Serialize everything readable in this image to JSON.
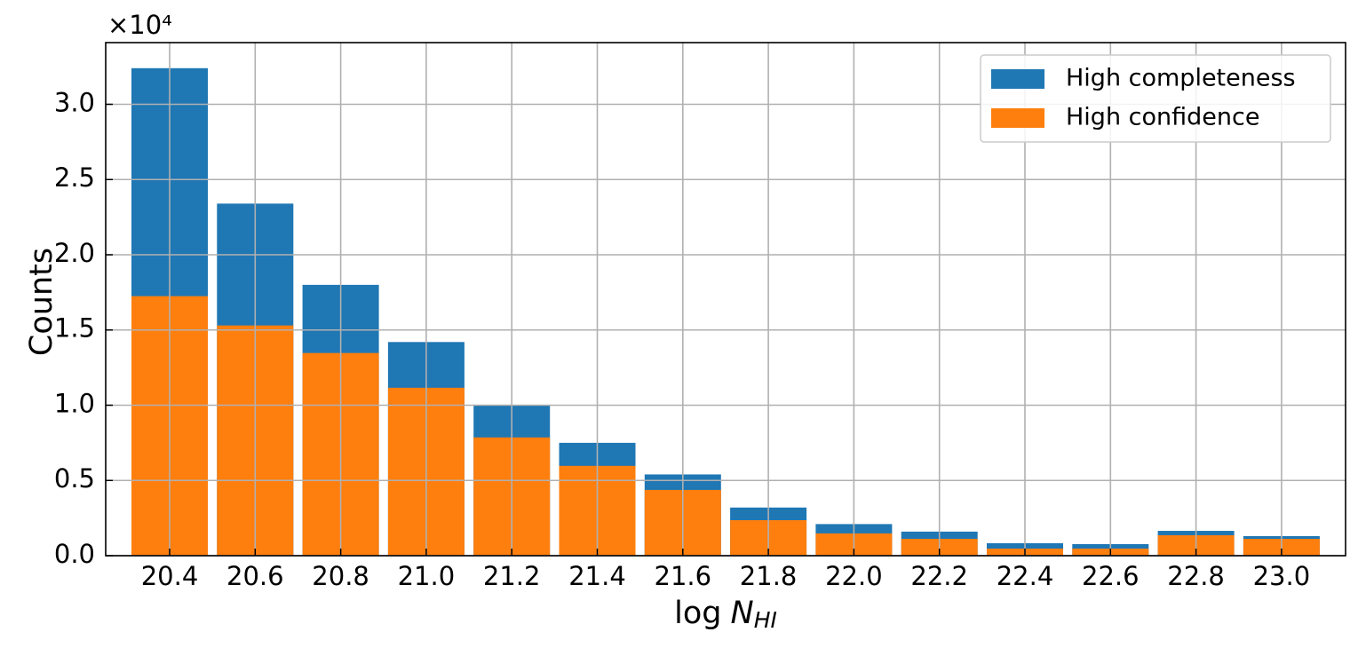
{
  "chart_data": {
    "type": "bar",
    "barmode": "overlay",
    "y_label": "Counts",
    "y_multiplier": "×10⁴",
    "x_label_parts": [
      "log",
      "N",
      "HI"
    ],
    "categories": [
      "20.4",
      "20.6",
      "20.8",
      "21.0",
      "21.2",
      "21.4",
      "21.6",
      "21.8",
      "22.0",
      "22.2",
      "22.4",
      "22.6",
      "22.8",
      "23.0"
    ],
    "series": [
      {
        "name": "High completeness",
        "color": "#1f77b4",
        "values": [
          3.24,
          2.34,
          1.8,
          1.42,
          1.0,
          0.75,
          0.54,
          0.32,
          0.21,
          0.16,
          0.083,
          0.077,
          0.165,
          0.13
        ]
      },
      {
        "name": "High confidence",
        "color": "#ff7f0e",
        "values": [
          1.725,
          1.53,
          1.347,
          1.116,
          0.786,
          0.597,
          0.437,
          0.236,
          0.148,
          0.112,
          0.047,
          0.047,
          0.136,
          0.112
        ]
      }
    ],
    "ylim": [
      0,
      3.41
    ],
    "yticks": [
      {
        "value": 0,
        "label": "0.0"
      },
      0.5,
      {
        "value": 1,
        "label": "1.0"
      },
      1.5,
      {
        "value": 2,
        "label": "2.0"
      },
      2.5,
      {
        "value": 3,
        "label": "3.0"
      }
    ],
    "grid": true,
    "legend": "upper right"
  }
}
